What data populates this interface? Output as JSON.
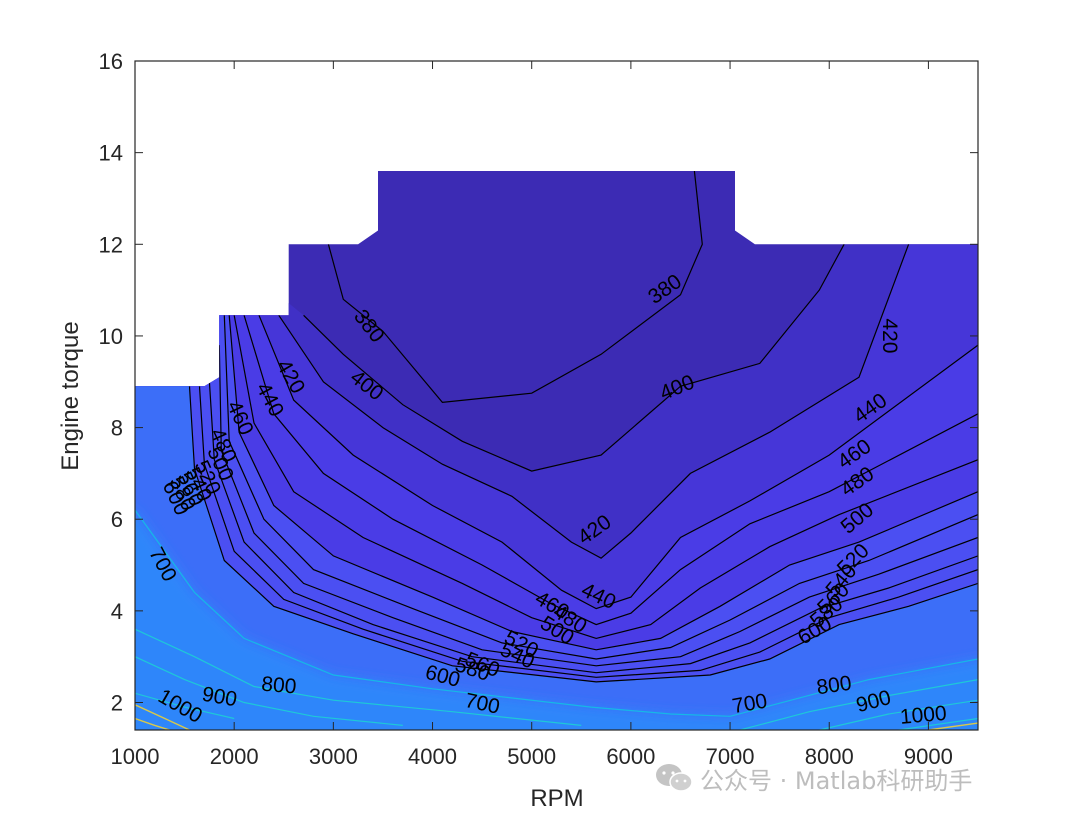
{
  "chart_data": {
    "type": "contour",
    "xlabel": "RPM",
    "ylabel": "Engine torque",
    "xlim": [
      1000,
      9500
    ],
    "ylim": [
      1.4,
      16
    ],
    "xticks": [
      1000,
      2000,
      3000,
      4000,
      5000,
      6000,
      7000,
      8000,
      9000
    ],
    "yticks": [
      2,
      4,
      6,
      8,
      10,
      12,
      14,
      16
    ],
    "grid": false,
    "colors": {
      "level_380": "#3c2bb4",
      "level_400": "#4030c6",
      "level_420": "#4636d8",
      "level_440": "#4a3ce6",
      "level_500": "#4b4ff2",
      "level_600": "#3c6ef8",
      "level_700": "#2d86fa",
      "contour_line": "#000000",
      "low_torque_line": "#1ec8d8",
      "high_bsfc_line": "#d8c84a"
    },
    "boundary": [
      [
        1000,
        8.9
      ],
      [
        1700,
        8.9
      ],
      [
        1850,
        9.1
      ],
      [
        1850,
        10.45
      ],
      [
        2550,
        10.45
      ],
      [
        2550,
        12.0
      ],
      [
        3250,
        12.0
      ],
      [
        3450,
        12.3
      ],
      [
        3450,
        13.6
      ],
      [
        7050,
        13.6
      ],
      [
        7050,
        12.3
      ],
      [
        7250,
        12.0
      ],
      [
        9500,
        12.0
      ],
      [
        9500,
        1.4
      ],
      [
        1000,
        1.4
      ]
    ],
    "contours": [
      {
        "level": 380,
        "label": "380",
        "points": [
          [
            2950,
            12.0
          ],
          [
            3100,
            10.8
          ],
          [
            3500,
            10.1
          ],
          [
            4100,
            8.55
          ],
          [
            5000,
            8.75
          ],
          [
            5700,
            9.6
          ],
          [
            6500,
            10.9
          ],
          [
            6720,
            12.0
          ],
          [
            6640,
            13.6
          ]
        ]
      },
      {
        "level": 400,
        "label": "400",
        "points": [
          [
            2700,
            10.45
          ],
          [
            3100,
            9.6
          ],
          [
            3700,
            8.5
          ],
          [
            4300,
            7.7
          ],
          [
            5000,
            7.05
          ],
          [
            5700,
            7.4
          ],
          [
            6500,
            8.9
          ],
          [
            7300,
            9.4
          ],
          [
            7900,
            11.0
          ],
          [
            8150,
            12.0
          ]
        ]
      },
      {
        "level": 420,
        "label": "420",
        "points": [
          [
            2450,
            10.45
          ],
          [
            2900,
            9.0
          ],
          [
            3500,
            8.0
          ],
          [
            4100,
            7.2
          ],
          [
            4800,
            6.5
          ],
          [
            5400,
            5.5
          ],
          [
            5700,
            5.15
          ],
          [
            6000,
            5.7
          ],
          [
            6600,
            7.0
          ],
          [
            7400,
            7.9
          ],
          [
            8300,
            9.1
          ],
          [
            8800,
            12.0
          ]
        ]
      },
      {
        "level": 440,
        "label": "440",
        "points": [
          [
            2250,
            10.45
          ],
          [
            2600,
            8.6
          ],
          [
            3200,
            7.4
          ],
          [
            4000,
            6.3
          ],
          [
            4700,
            5.5
          ],
          [
            5300,
            4.45
          ],
          [
            5650,
            4.05
          ],
          [
            6000,
            4.3
          ],
          [
            6500,
            5.6
          ],
          [
            7200,
            6.4
          ],
          [
            8000,
            7.4
          ],
          [
            9500,
            9.8
          ]
        ]
      },
      {
        "level": 460,
        "label": "460",
        "points": [
          [
            2100,
            10.45
          ],
          [
            2400,
            8.3
          ],
          [
            2900,
            7.0
          ],
          [
            3600,
            6.0
          ],
          [
            4500,
            5.0
          ],
          [
            5200,
            4.15
          ],
          [
            5650,
            3.7
          ],
          [
            6000,
            3.95
          ],
          [
            6500,
            4.9
          ],
          [
            7200,
            5.9
          ],
          [
            8000,
            6.6
          ],
          [
            9500,
            8.3
          ]
        ]
      },
      {
        "level": 480,
        "label": "480",
        "points": [
          [
            2000,
            10.45
          ],
          [
            2200,
            8.1
          ],
          [
            2600,
            6.6
          ],
          [
            3300,
            5.6
          ],
          [
            4300,
            4.6
          ],
          [
            5000,
            3.85
          ],
          [
            5650,
            3.4
          ],
          [
            6200,
            3.7
          ],
          [
            6700,
            4.5
          ],
          [
            7400,
            5.4
          ],
          [
            8100,
            6.1
          ],
          [
            9500,
            7.3
          ]
        ]
      },
      {
        "level": 500,
        "label": "500",
        "points": [
          [
            1950,
            10.45
          ],
          [
            2050,
            7.9
          ],
          [
            2400,
            6.3
          ],
          [
            3000,
            5.2
          ],
          [
            4000,
            4.3
          ],
          [
            4800,
            3.55
          ],
          [
            5650,
            3.15
          ],
          [
            6300,
            3.4
          ],
          [
            6900,
            4.1
          ],
          [
            7600,
            5.0
          ],
          [
            8300,
            5.5
          ],
          [
            9500,
            6.6
          ]
        ]
      },
      {
        "level": 520,
        "label": "520",
        "points": [
          [
            1900,
            10.45
          ],
          [
            1950,
            7.7
          ],
          [
            2300,
            6.0
          ],
          [
            2800,
            4.9
          ],
          [
            3800,
            4.05
          ],
          [
            4700,
            3.3
          ],
          [
            5650,
            2.95
          ],
          [
            6400,
            3.2
          ],
          [
            7000,
            3.8
          ],
          [
            7700,
            4.6
          ],
          [
            8400,
            5.1
          ],
          [
            9500,
            6.1
          ]
        ]
      },
      {
        "level": 540,
        "label": "540",
        "points": [
          [
            1850,
            9.8
          ],
          [
            1870,
            7.5
          ],
          [
            2200,
            5.7
          ],
          [
            2700,
            4.6
          ],
          [
            3600,
            3.85
          ],
          [
            4500,
            3.15
          ],
          [
            5650,
            2.8
          ],
          [
            6500,
            3.0
          ],
          [
            7100,
            3.55
          ],
          [
            7800,
            4.3
          ],
          [
            8500,
            4.8
          ],
          [
            9500,
            5.6
          ]
        ]
      },
      {
        "level": 560,
        "label": "560",
        "points": [
          [
            1750,
            9.0
          ],
          [
            1800,
            7.3
          ],
          [
            2100,
            5.5
          ],
          [
            2600,
            4.4
          ],
          [
            3400,
            3.7
          ],
          [
            4400,
            3.0
          ],
          [
            5650,
            2.65
          ],
          [
            6600,
            2.85
          ],
          [
            7200,
            3.3
          ],
          [
            7900,
            4.05
          ],
          [
            8600,
            4.5
          ],
          [
            9500,
            5.2
          ]
        ]
      },
      {
        "level": 580,
        "label": "580",
        "points": [
          [
            1650,
            8.9
          ],
          [
            1700,
            7.2
          ],
          [
            2000,
            5.3
          ],
          [
            2500,
            4.25
          ],
          [
            3300,
            3.6
          ],
          [
            4300,
            2.9
          ],
          [
            5650,
            2.55
          ],
          [
            6700,
            2.7
          ],
          [
            7300,
            3.1
          ],
          [
            8000,
            3.85
          ],
          [
            8700,
            4.3
          ],
          [
            9500,
            4.9
          ]
        ]
      },
      {
        "level": 600,
        "label": "600",
        "points": [
          [
            1550,
            8.9
          ],
          [
            1600,
            7.1
          ],
          [
            1900,
            5.1
          ],
          [
            2400,
            4.1
          ],
          [
            3200,
            3.5
          ],
          [
            4200,
            2.8
          ],
          [
            5650,
            2.45
          ],
          [
            6800,
            2.6
          ],
          [
            7400,
            2.95
          ],
          [
            8100,
            3.7
          ],
          [
            8800,
            4.1
          ],
          [
            9500,
            4.6
          ]
        ]
      },
      {
        "level": 700,
        "label": "700",
        "points": [
          [
            1000,
            6.2
          ],
          [
            1200,
            5.6
          ],
          [
            1600,
            4.4
          ],
          [
            2100,
            3.4
          ],
          [
            3000,
            2.6
          ],
          [
            4000,
            2.3
          ],
          [
            5600,
            1.9
          ],
          [
            6400,
            1.75
          ],
          [
            7000,
            1.7
          ],
          [
            7700,
            2.1
          ],
          [
            8400,
            2.5
          ],
          [
            9500,
            2.95
          ]
        ]
      }
    ],
    "low_lines": [
      {
        "points": [
          [
            1000,
            3.6
          ],
          [
            1600,
            3.0
          ],
          [
            2200,
            2.35
          ],
          [
            3000,
            2.05
          ],
          [
            4200,
            1.8
          ],
          [
            5500,
            1.5
          ]
        ]
      },
      {
        "points": [
          [
            1000,
            3.0
          ],
          [
            1500,
            2.5
          ],
          [
            2100,
            2.0
          ],
          [
            2800,
            1.7
          ],
          [
            3700,
            1.5
          ]
        ]
      },
      {
        "points": [
          [
            1000,
            2.2
          ],
          [
            1500,
            1.9
          ],
          [
            2000,
            1.65
          ]
        ]
      },
      {
        "points": [
          [
            7100,
            1.4
          ],
          [
            7800,
            1.8
          ],
          [
            8600,
            2.15
          ],
          [
            9500,
            2.5
          ]
        ]
      },
      {
        "points": [
          [
            7900,
            1.4
          ],
          [
            8600,
            1.75
          ],
          [
            9500,
            2.05
          ]
        ]
      },
      {
        "points": [
          [
            8700,
            1.4
          ],
          [
            9500,
            1.65
          ]
        ]
      }
    ],
    "high_lines": [
      {
        "points": [
          [
            1000,
            1.95
          ],
          [
            1300,
            1.65
          ],
          [
            1550,
            1.4
          ]
        ]
      },
      {
        "points": [
          [
            1000,
            1.65
          ],
          [
            1200,
            1.5
          ],
          [
            1350,
            1.4
          ]
        ]
      },
      {
        "points": [
          [
            9000,
            1.4
          ],
          [
            9500,
            1.55
          ]
        ]
      }
    ],
    "contour_labels": [
      {
        "text": "380",
        "x": 3350,
        "y": 10.2,
        "angle": 52
      },
      {
        "text": "380",
        "x": 6350,
        "y": 11.0,
        "angle": -35
      },
      {
        "text": "400",
        "x": 3330,
        "y": 8.9,
        "angle": 38
      },
      {
        "text": "400",
        "x": 6470,
        "y": 8.85,
        "angle": -22
      },
      {
        "text": "420",
        "x": 2560,
        "y": 9.1,
        "angle": 60
      },
      {
        "text": "420",
        "x": 5640,
        "y": 5.75,
        "angle": -35
      },
      {
        "text": "420",
        "x": 8600,
        "y": 10.0,
        "angle": 90
      },
      {
        "text": "440",
        "x": 2350,
        "y": 8.6,
        "angle": 62
      },
      {
        "text": "440",
        "x": 5670,
        "y": 4.3,
        "angle": 25
      },
      {
        "text": "440",
        "x": 8420,
        "y": 8.4,
        "angle": -35
      },
      {
        "text": "460",
        "x": 2050,
        "y": 8.2,
        "angle": 65
      },
      {
        "text": "460",
        "x": 5200,
        "y": 4.1,
        "angle": 30
      },
      {
        "text": "460",
        "x": 8260,
        "y": 7.4,
        "angle": -35
      },
      {
        "text": "480",
        "x": 1880,
        "y": 7.6,
        "angle": 65
      },
      {
        "text": "480",
        "x": 5380,
        "y": 3.8,
        "angle": 32
      },
      {
        "text": "480",
        "x": 8290,
        "y": 6.8,
        "angle": -35
      },
      {
        "text": "500",
        "x": 5250,
        "y": 3.55,
        "angle": 32
      },
      {
        "text": "500",
        "x": 8290,
        "y": 6.0,
        "angle": -40
      },
      {
        "text": "520",
        "x": 4890,
        "y": 3.25,
        "angle": 28
      },
      {
        "text": "520",
        "x": 8250,
        "y": 5.1,
        "angle": -45
      },
      {
        "text": "540",
        "x": 4850,
        "y": 3.0,
        "angle": 25
      },
      {
        "text": "540",
        "x": 8130,
        "y": 4.65,
        "angle": -50
      },
      {
        "text": "560",
        "x": 4500,
        "y": 2.8,
        "angle": 22
      },
      {
        "text": "560",
        "x": 8050,
        "y": 4.25,
        "angle": -45
      },
      {
        "text": "580",
        "x": 4400,
        "y": 2.7,
        "angle": 18
      },
      {
        "text": "580",
        "x": 7980,
        "y": 3.95,
        "angle": -40
      },
      {
        "text": "600",
        "x": 4100,
        "y": 2.55,
        "angle": 15
      },
      {
        "text": "600",
        "x": 7860,
        "y": 3.55,
        "angle": -30
      },
      {
        "text": "500",
        "x": 1850,
        "y": 7.2,
        "angle": 65
      },
      {
        "text": "520",
        "x": 1720,
        "y": 6.9,
        "angle": 65
      },
      {
        "text": "540",
        "x": 1630,
        "y": 6.75,
        "angle": 65
      },
      {
        "text": "560",
        "x": 1550,
        "y": 6.65,
        "angle": 65
      },
      {
        "text": "580",
        "x": 1470,
        "y": 6.55,
        "angle": 65
      },
      {
        "text": "600",
        "x": 1400,
        "y": 6.45,
        "angle": 65
      },
      {
        "text": "700",
        "x": 1270,
        "y": 5.0,
        "angle": 62
      },
      {
        "text": "700",
        "x": 4500,
        "y": 1.95,
        "angle": 12
      },
      {
        "text": "700",
        "x": 7200,
        "y": 1.95,
        "angle": -10
      },
      {
        "text": "800",
        "x": 2450,
        "y": 2.35,
        "angle": 5
      },
      {
        "text": "800",
        "x": 8050,
        "y": 2.35,
        "angle": -8
      },
      {
        "text": "900",
        "x": 1850,
        "y": 2.1,
        "angle": 10
      },
      {
        "text": "900",
        "x": 8450,
        "y": 2.0,
        "angle": -15
      },
      {
        "text": "1000",
        "x": 1450,
        "y": 1.9,
        "angle": 30
      },
      {
        "text": "1000",
        "x": 8950,
        "y": 1.7,
        "angle": -5
      }
    ]
  },
  "watermark": {
    "text": "公众号 · Matlab科研助手",
    "icon": "wechat-icon"
  }
}
